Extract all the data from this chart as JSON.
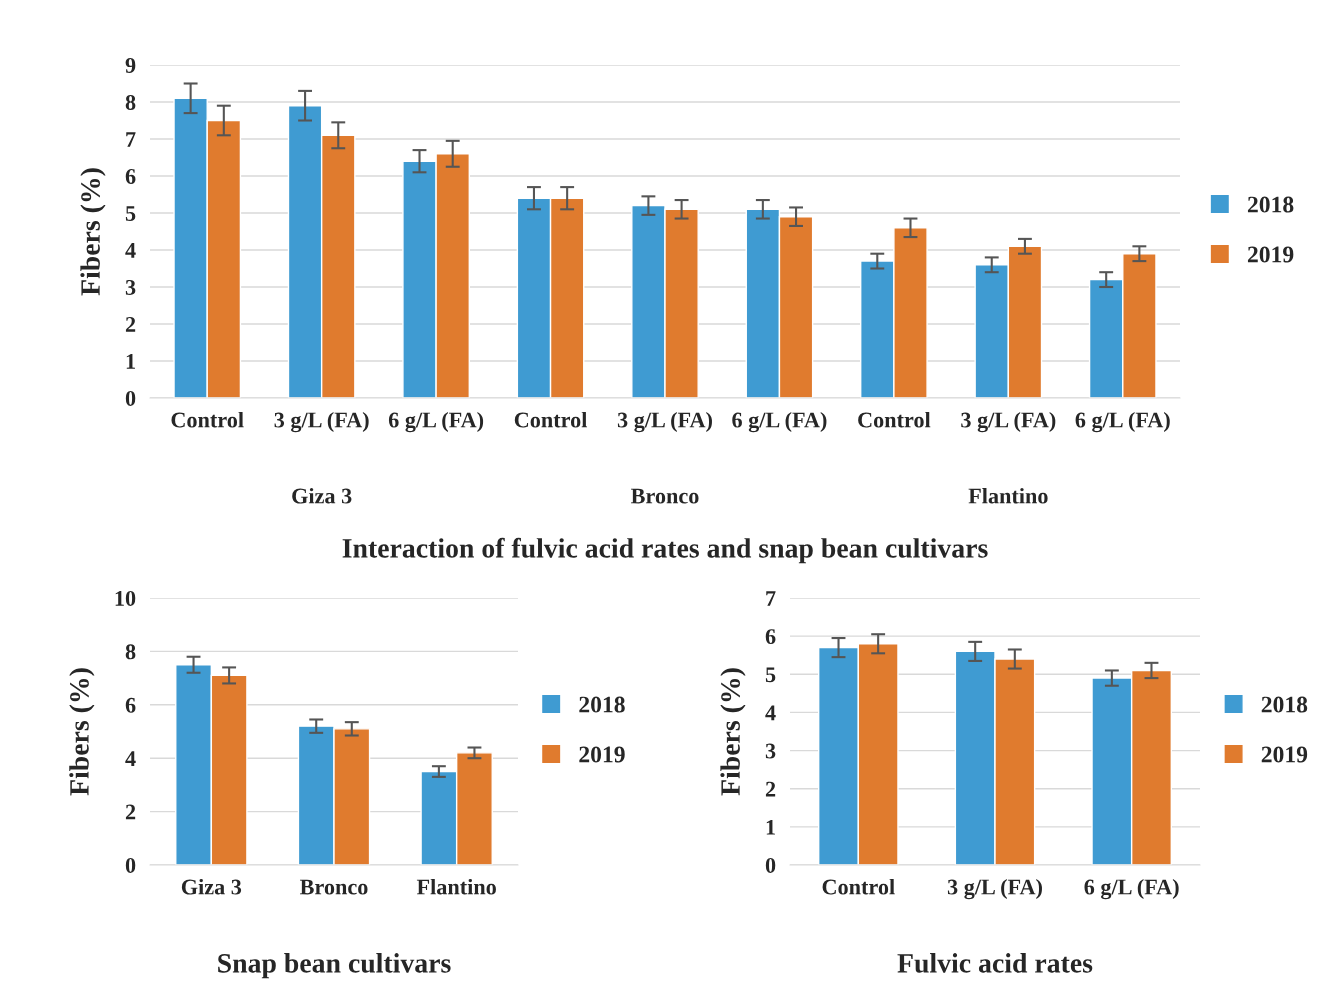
{
  "chart_data": [
    {
      "type": "bar",
      "title": "Interaction of fulvic acid rates and snap bean cultivars",
      "ylabel": "Fibers (%)",
      "categories": [
        "Control",
        "3 g/L (FA)",
        "6 g/L (FA)",
        "Control",
        "3 g/L (FA)",
        "6 g/L (FA)",
        "Control",
        "3 g/L (FA)",
        "6 g/L (FA)"
      ],
      "series": [
        {
          "name": "2018",
          "color": "#3f9bd2",
          "values": [
            8.1,
            7.9,
            6.4,
            5.4,
            5.2,
            5.1,
            3.7,
            3.6,
            3.2
          ],
          "errors": [
            0.4,
            0.4,
            0.3,
            0.3,
            0.25,
            0.25,
            0.2,
            0.2,
            0.2
          ]
        },
        {
          "name": "2019",
          "color": "#e07b2e",
          "values": [
            7.5,
            7.1,
            6.6,
            5.4,
            5.1,
            4.9,
            4.6,
            4.1,
            3.9
          ],
          "errors": [
            0.4,
            0.35,
            0.35,
            0.3,
            0.25,
            0.25,
            0.25,
            0.2,
            0.2
          ]
        }
      ],
      "annotations": [
        "Giza 3",
        "Bronco",
        "Flantino"
      ],
      "ylim": [
        0,
        9
      ],
      "yticks": [
        0,
        1,
        2,
        3,
        4,
        5,
        6,
        7,
        8,
        9
      ],
      "grid": "y",
      "legend": "right"
    },
    {
      "type": "bar",
      "title": "Snap bean cultivars",
      "ylabel": "Fibers (%)",
      "categories": [
        "Giza 3",
        "Bronco",
        "Flantino"
      ],
      "series": [
        {
          "name": "2018",
          "color": "#3f9bd2",
          "values": [
            7.5,
            5.2,
            3.5
          ],
          "errors": [
            0.3,
            0.25,
            0.2
          ]
        },
        {
          "name": "2019",
          "color": "#e07b2e",
          "values": [
            7.1,
            5.1,
            4.2
          ],
          "errors": [
            0.3,
            0.25,
            0.2
          ]
        }
      ],
      "ylim": [
        0,
        10
      ],
      "yticks": [
        0,
        2,
        4,
        6,
        8,
        10
      ],
      "grid": "y",
      "legend": "right"
    },
    {
      "type": "bar",
      "title": "Fulvic acid rates",
      "ylabel": "Fibers (%)",
      "categories": [
        "Control",
        "3 g/L (FA)",
        "6 g/L (FA)"
      ],
      "series": [
        {
          "name": "2018",
          "color": "#3f9bd2",
          "values": [
            5.7,
            5.6,
            4.9
          ],
          "errors": [
            0.25,
            0.25,
            0.2
          ]
        },
        {
          "name": "2019",
          "color": "#e07b2e",
          "values": [
            5.8,
            5.4,
            5.1
          ],
          "errors": [
            0.25,
            0.25,
            0.2
          ]
        }
      ],
      "ylim": [
        0,
        7
      ],
      "yticks": [
        0,
        1,
        2,
        3,
        4,
        5,
        6,
        7
      ],
      "grid": "y",
      "legend": "right"
    }
  ]
}
